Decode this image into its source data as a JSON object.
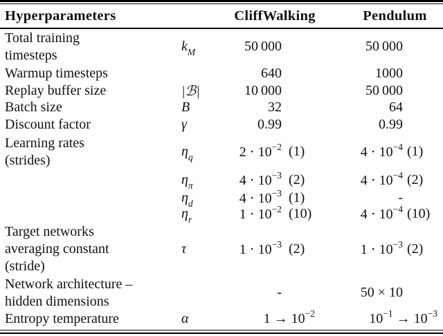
{
  "page": {
    "background": "#ffffff",
    "text_color": "#111111",
    "rule_color": "#000000"
  },
  "table": {
    "headers": {
      "param": "Hyperparameters",
      "cliffwalking": "CliffWalking",
      "pendulum": "Pendulum"
    },
    "rows": [
      {
        "label": [
          "Total training",
          "timesteps"
        ],
        "symbol": "k_[M]",
        "cliffwalking": {
          "value": "50 000",
          "stride": ""
        },
        "pendulum": {
          "value": "50 000",
          "stride": ""
        }
      },
      {
        "label": [
          "Warmup timesteps"
        ],
        "symbol": "",
        "cliffwalking": {
          "value": "640",
          "stride": ""
        },
        "pendulum": {
          "value": "1000",
          "stride": ""
        }
      },
      {
        "label": [
          "Replay buffer size"
        ],
        "symbol": "|ℬ|",
        "cliffwalking": {
          "value": "10 000",
          "stride": ""
        },
        "pendulum": {
          "value": "50 000",
          "stride": ""
        }
      },
      {
        "label": [
          "Batch size"
        ],
        "symbol": "B",
        "cliffwalking": {
          "value": "32",
          "stride": ""
        },
        "pendulum": {
          "value": "64",
          "stride": ""
        }
      },
      {
        "label": [
          "Discount factor"
        ],
        "symbol": "γ",
        "cliffwalking": {
          "value": "0.99",
          "stride": ""
        },
        "pendulum": {
          "value": "0.99",
          "stride": ""
        }
      },
      {
        "label": [
          "Learning rates",
          "(strides)"
        ],
        "symbol": "η_[q]",
        "cliffwalking": {
          "value": "2 ⋅ 10^[−2]",
          "stride": "(1)"
        },
        "pendulum": {
          "value": "4 ⋅ 10^[−4]",
          "stride": "(1)"
        }
      },
      {
        "label": [],
        "symbol": "η_[π]",
        "cliffwalking": {
          "value": "4 ⋅ 10^[−3]",
          "stride": "(2)"
        },
        "pendulum": {
          "value": "4 ⋅ 10^[−4]",
          "stride": "(2)"
        }
      },
      {
        "label": [],
        "symbol": "η_[d]",
        "cliffwalking": {
          "value": "4 ⋅ 10^[−3]",
          "stride": "(1)"
        },
        "pendulum": {
          "value": "-",
          "stride": ""
        }
      },
      {
        "label": [],
        "symbol": "η_[r]",
        "cliffwalking": {
          "value": "1 ⋅ 10^[−2]",
          "stride": "(10)"
        },
        "pendulum": {
          "value": "4 ⋅ 10^[−4]",
          "stride": "(10)"
        }
      },
      {
        "label": [
          "Target networks",
          "averaging constant",
          "(stride)"
        ],
        "symbol": "τ",
        "cliffwalking": {
          "value": "1 ⋅ 10^[−3]",
          "stride": "(2)"
        },
        "pendulum": {
          "value": "1 ⋅ 10^[−3]",
          "stride": "(2)"
        }
      },
      {
        "label": [
          "Network architecture –",
          "hidden dimensions"
        ],
        "symbol": "",
        "cliffwalking": {
          "value": "-",
          "stride": ""
        },
        "pendulum": {
          "value": "50 × 10",
          "stride": ""
        }
      },
      {
        "label": [
          "Entropy temperature"
        ],
        "symbol": "α",
        "cliffwalking": {
          "value": "1 → 10^[−2]"
        },
        "pendulum": {
          "value": "10^[−1] → 10^[−3]"
        }
      }
    ]
  }
}
